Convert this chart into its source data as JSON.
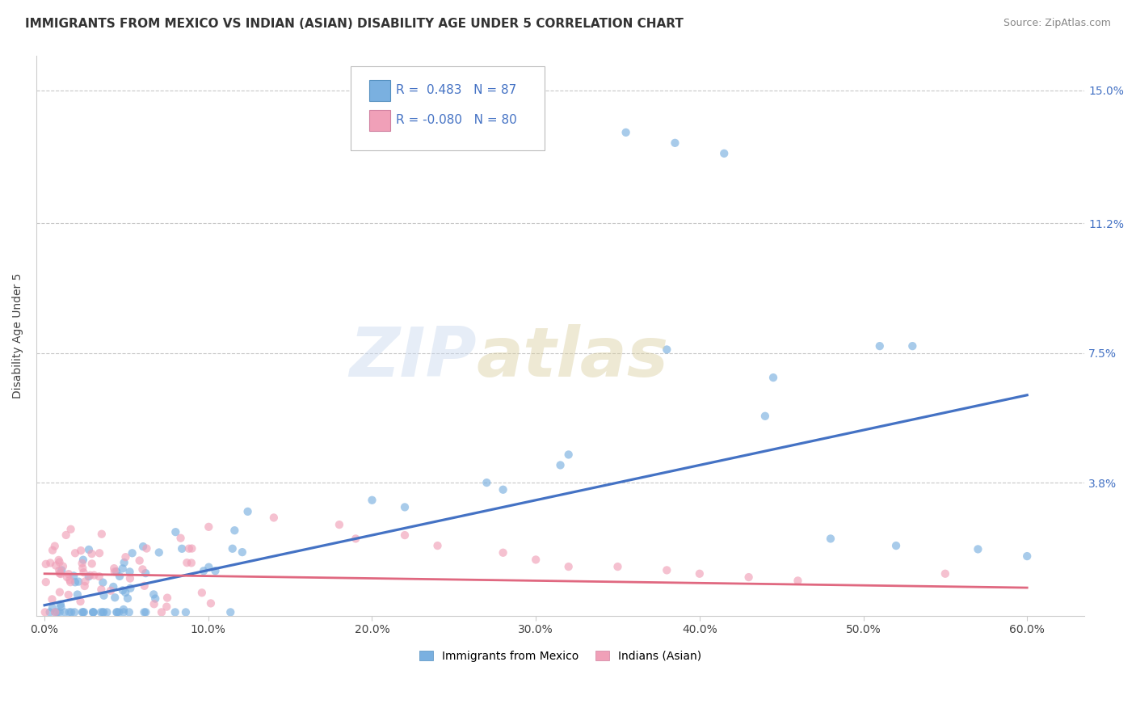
{
  "title": "IMMIGRANTS FROM MEXICO VS INDIAN (ASIAN) DISABILITY AGE UNDER 5 CORRELATION CHART",
  "source": "Source: ZipAtlas.com",
  "ylabel_label": "Disability Age Under 5",
  "x_tick_labels": [
    "0.0%",
    "10.0%",
    "20.0%",
    "30.0%",
    "40.0%",
    "50.0%",
    "60.0%"
  ],
  "x_tick_values": [
    0.0,
    0.1,
    0.2,
    0.3,
    0.4,
    0.5,
    0.6
  ],
  "y_tick_labels": [
    "3.8%",
    "7.5%",
    "11.2%",
    "15.0%"
  ],
  "y_tick_values": [
    0.038,
    0.075,
    0.112,
    0.15
  ],
  "ylim": [
    0.0,
    0.16
  ],
  "xlim": [
    -0.005,
    0.635
  ],
  "R_mexico": 0.483,
  "N_mexico": 87,
  "R_indian": -0.08,
  "N_indian": 80,
  "scatter_mexico_color": "#7ab0e0",
  "scatter_indian_color": "#f0a0b8",
  "trendline_mexico_color": "#4472c4",
  "trendline_indian_color": "#e06880",
  "background_color": "#ffffff",
  "grid_color": "#c8c8c8",
  "title_fontsize": 11,
  "axis_label_fontsize": 10,
  "tick_fontsize": 10,
  "legend_fontsize": 11,
  "source_fontsize": 9,
  "scatter_size": 55,
  "scatter_alpha": 0.65,
  "legend_bottom_labels": [
    "Immigrants from Mexico",
    "Indians (Asian)"
  ],
  "mexico_trendline_y0": 0.003,
  "mexico_trendline_y1": 0.063,
  "indian_trendline_y0": 0.012,
  "indian_trendline_y1": 0.008
}
